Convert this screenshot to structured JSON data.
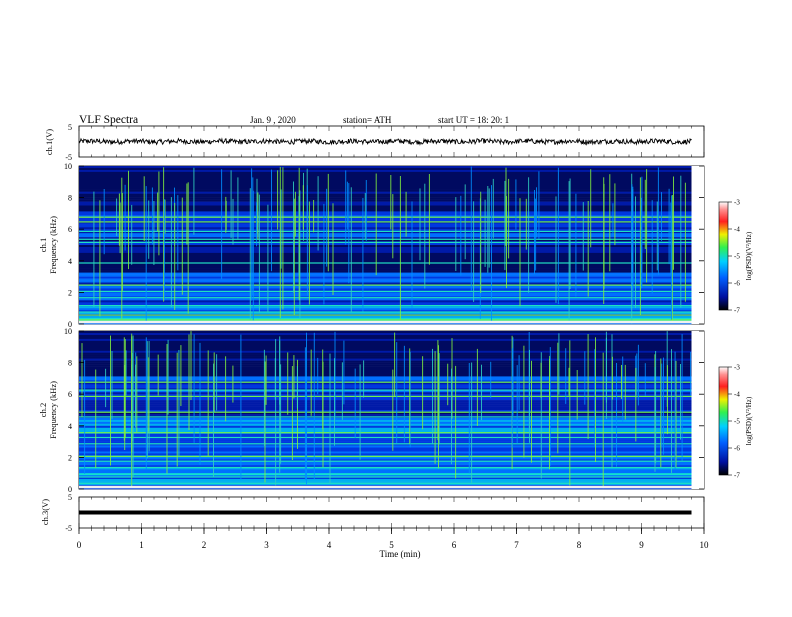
{
  "header": {
    "title": "VLF Spectra",
    "date": "Jan. 9 , 2020",
    "station": "station= ATH",
    "start": "start UT = 18: 20: 1"
  },
  "chart_data": [
    {
      "type": "line",
      "ylabel": "ch.1(V)",
      "ylim": [
        -5,
        5
      ],
      "y_ticks": [
        "5",
        "-5"
      ],
      "xlim": [
        0,
        10
      ],
      "description_values": {
        "signal_mean": 0,
        "signal_amplitude_approx": 1
      }
    },
    {
      "type": "heatmap",
      "ylabel": "Frequency (kHz)",
      "channel_label": "ch.1",
      "ylim": [
        0,
        10
      ],
      "y_ticks": [
        "0",
        "2",
        "4",
        "6",
        "8",
        "10"
      ],
      "xlim": [
        0,
        10
      ],
      "colorbar": {
        "label": "log(PSD)(V²/Hz)",
        "range": [
          -7,
          -3
        ],
        "ticks": [
          "-3",
          "-4",
          "-5",
          "-6",
          "-7"
        ]
      },
      "colors": {
        "low": "#000000",
        "mid_low": "#0a2aa8",
        "mid": "#1ab0e0",
        "mid_high": "#33e060",
        "high": "#ffe000",
        "top": "#ff2020"
      }
    },
    {
      "type": "heatmap",
      "ylabel": "Frequency (kHz)",
      "channel_label": "ch.2",
      "ylim": [
        0,
        10
      ],
      "y_ticks": [
        "0",
        "2",
        "4",
        "6",
        "8",
        "10"
      ],
      "xlim": [
        0,
        10
      ],
      "colorbar": {
        "label": "log(PSD)(V²/Hz)",
        "range": [
          -7,
          -3
        ],
        "ticks": [
          "-3",
          "-4",
          "-5",
          "-6",
          "-7"
        ]
      }
    },
    {
      "type": "line",
      "ylabel": "ch.3(V)",
      "ylim": [
        -5,
        5
      ],
      "y_ticks": [
        "5",
        "-5"
      ],
      "xlim": [
        0,
        10
      ],
      "description_values": {
        "signal_level": 0
      }
    }
  ],
  "x_axis": {
    "label": "Time (min)",
    "ticks": [
      "0",
      "1",
      "2",
      "3",
      "4",
      "5",
      "6",
      "7",
      "8",
      "9",
      "10"
    ]
  }
}
